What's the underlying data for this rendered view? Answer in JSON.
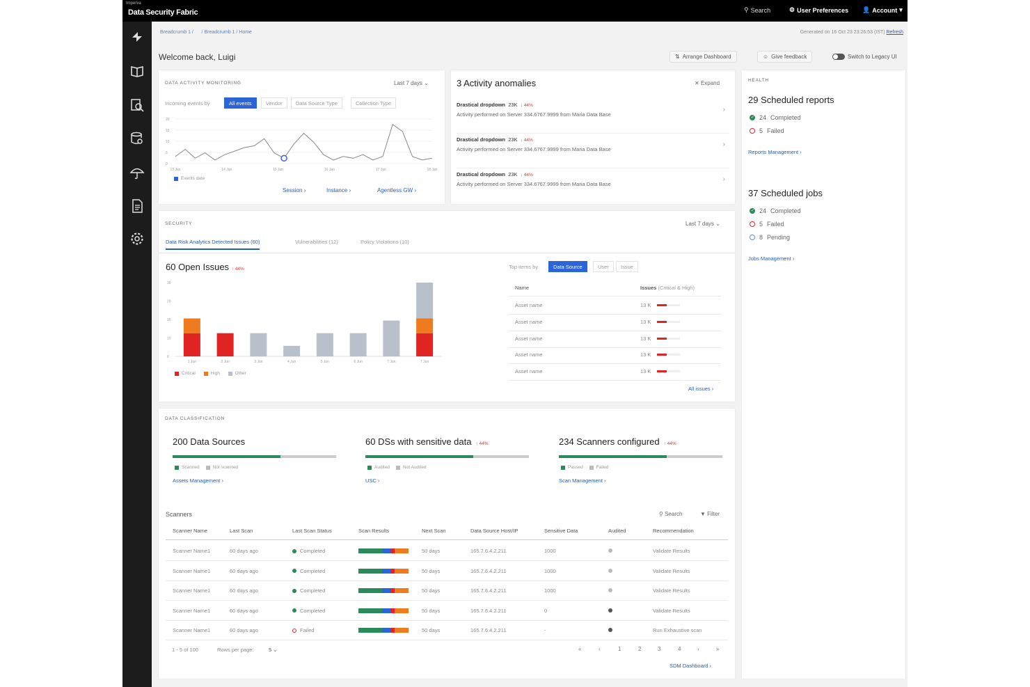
{
  "topbar": {
    "brand_small": "Imperva",
    "brand": "Data Security Fabric",
    "search": "Search",
    "prefs": "User Preferences",
    "account": "Account"
  },
  "breadcrumb": {
    "items": [
      "Breadcrumb 1",
      "/",
      "/",
      "Breadcrumb 1",
      "/",
      "Home"
    ]
  },
  "generated": {
    "text": "Generated on 16 Oct 23 23:26:53 (IST)",
    "refresh": "Refresh"
  },
  "welcome": "Welcome back, Luigi",
  "actions": {
    "arrange": "Arrange Dashboard",
    "feedback": "Give feedback",
    "legacy": "Switch to Legacy UI"
  },
  "activity": {
    "section": "DATA ACTIVITY MONITORING",
    "period": "Last 7 days",
    "incoming_label": "Incoming events by",
    "chips": [
      "All events",
      "Vendor",
      "Data Source Type",
      "Collection Type"
    ],
    "legend": "Events date",
    "links": [
      "Session",
      "Instance",
      "Agentless GW"
    ]
  },
  "anomalies": {
    "title": "3 Activity anomalies",
    "expand": "Expand",
    "items": [
      {
        "title": "Drastical dropdown",
        "count": "23K",
        "trend": "↓ 44%",
        "desc": "Activity performed on Server 334.6767.9999 from Maria Data Base"
      },
      {
        "title": "Drastical dropdown",
        "count": "23K",
        "trend": "↓ 44%",
        "desc": "Activity performed on Server 334.6767.9999 from Maria Data Base"
      },
      {
        "title": "Drastical dropdown",
        "count": "23K",
        "trend": "↓ 44%",
        "desc": "Activity performed on Server 334.6767.9999 from Maria Data Base"
      }
    ]
  },
  "health": {
    "section": "HEALTH",
    "reports": {
      "title": "29 Scheduled reports",
      "completed_n": "24",
      "completed": "Completed",
      "failed_n": "5",
      "failed": "Failed",
      "link": "Reports Management"
    },
    "jobs": {
      "title": "37 Scheduled jobs",
      "completed_n": "24",
      "completed": "Completed",
      "failed_n": "5",
      "failed": "Failed",
      "pending_n": "8",
      "pending": "Pending",
      "link": "Jobs Management"
    }
  },
  "security": {
    "section": "SECURITY",
    "period": "Last 7 days",
    "tabs": [
      "Data Risk Analytics Detected Issues (60)",
      "Vulnerabilities (12)",
      "Policy Violations (10)"
    ],
    "open_title": "60 Open Issues",
    "open_trend": "↑ 44%",
    "top_items_label": "Top items by",
    "top_chips": [
      "Data Source",
      "User",
      "Issue"
    ],
    "table_head": {
      "name": "Name",
      "issues": "Issues",
      "issues_sub": "(Critical & High)"
    },
    "rows": [
      {
        "name": "Asset name",
        "value": "13 K"
      },
      {
        "name": "Asset name",
        "value": "13 K"
      },
      {
        "name": "Asset name",
        "value": "13 K"
      },
      {
        "name": "Asset name",
        "value": "13 K"
      },
      {
        "name": "Asset name",
        "value": "13 K"
      }
    ],
    "all_issues": "All issues",
    "legend": [
      "Critical",
      "High",
      "Other"
    ]
  },
  "classification": {
    "section": "DATA CLASSIFICATION",
    "blocks": [
      {
        "title": "200 Data Sources",
        "trend": "",
        "legend": [
          "Scanned",
          "Not scanned"
        ],
        "link": "Assets Management",
        "fraction": 0.66
      },
      {
        "title": "60 DSs with sensitive data",
        "trend": "↑ 44%",
        "legend": [
          "Audited",
          "Not Audited"
        ],
        "link": "USC",
        "fraction": 0.66
      },
      {
        "title": "234 Scanners configured",
        "trend": "↑ 44%",
        "legend": [
          "Passed",
          "Failed"
        ],
        "link": "Scan Management",
        "fraction": 0.66
      }
    ]
  },
  "scanners": {
    "title": "Scanners",
    "search": "Search",
    "filter": "Filter",
    "headers": [
      "Scanner Name",
      "Last Scan",
      "Last Scan Status",
      "Scan Results",
      "Next Scan",
      "Data Source Host/IP",
      "Sensitive Data",
      "Audited",
      "Recommendation"
    ],
    "rows": [
      {
        "name": "Scanner Name1",
        "last": "60 days ago",
        "status": "Completed",
        "ok": true,
        "next": "50 days",
        "host": "165.7.6.4.2.211",
        "sensitive": "1000",
        "recommend": "Validate Results"
      },
      {
        "name": "Scanner Name1",
        "last": "60 days ago",
        "status": "Completed",
        "ok": true,
        "next": "50 days",
        "host": "165.7.6.4.2.211",
        "sensitive": "1000",
        "recommend": "Validate Results"
      },
      {
        "name": "Scanner Name1",
        "last": "60 days ago",
        "status": "Completed",
        "ok": true,
        "next": "50 days",
        "host": "165.7.6.4.2.211",
        "sensitive": "1000",
        "recommend": "Validate Results"
      },
      {
        "name": "Scanner Name1",
        "last": "60 days ago",
        "status": "Completed",
        "ok": true,
        "next": "50 days",
        "host": "165.7.6.4.2.211",
        "sensitive": "0",
        "recommend": "Validate Results"
      },
      {
        "name": "Scanner Name1",
        "last": "60 days ago",
        "status": "Failed",
        "ok": false,
        "next": "50 days",
        "host": "165.7.6.4.2.211",
        "sensitive": "-",
        "recommend": "Run Exhaustive scan"
      }
    ],
    "range": "1 - 5 of 100",
    "rows_per_page": "Rows per page:",
    "rpp_value": "5",
    "pages": [
      "1",
      "2",
      "3",
      "4"
    ],
    "dashboard_link": "SDM Dashboard"
  },
  "colors": {
    "accent": "#2d64d8",
    "critical": "#e02424",
    "high": "#f07b1e",
    "other": "#b8c0cc",
    "ok": "#2a8a5a"
  },
  "chart_data": [
    {
      "type": "line",
      "title": "",
      "series": [
        {
          "name": "Events date",
          "values": [
            4,
            8,
            3,
            6,
            2,
            5,
            7,
            9,
            10,
            14,
            6,
            3,
            11,
            17,
            12,
            5,
            2,
            4,
            3,
            5,
            2,
            4,
            22,
            18,
            4,
            2,
            3
          ]
        }
      ],
      "x_tick_labels": [
        "13 Jan",
        "14 Jan",
        "15 Jan",
        "16 Jan",
        "17 Jan",
        "18 Jan"
      ],
      "y_tick_labels": [
        "20",
        "15",
        "10",
        "5",
        "0"
      ],
      "ylim": [
        0,
        25
      ]
    },
    {
      "type": "bar",
      "title": "",
      "categories": [
        "1 Jun",
        "2 Jun",
        "3 Jun",
        "4 Jun",
        "5 Jun",
        "6 Jun",
        "7 Jun",
        "7 Jun"
      ],
      "y_tick_labels": [
        "30",
        "20",
        "15",
        "10",
        "0"
      ],
      "ylim": [
        0,
        35
      ],
      "series": [
        {
          "name": "Critical",
          "values": [
            11,
            11,
            0,
            0,
            0,
            0,
            0,
            11
          ]
        },
        {
          "name": "High",
          "values": [
            7,
            0,
            0,
            0,
            0,
            0,
            0,
            7
          ]
        },
        {
          "name": "Other",
          "values": [
            0,
            0,
            11,
            5,
            11,
            11,
            17,
            17
          ]
        }
      ]
    }
  ]
}
